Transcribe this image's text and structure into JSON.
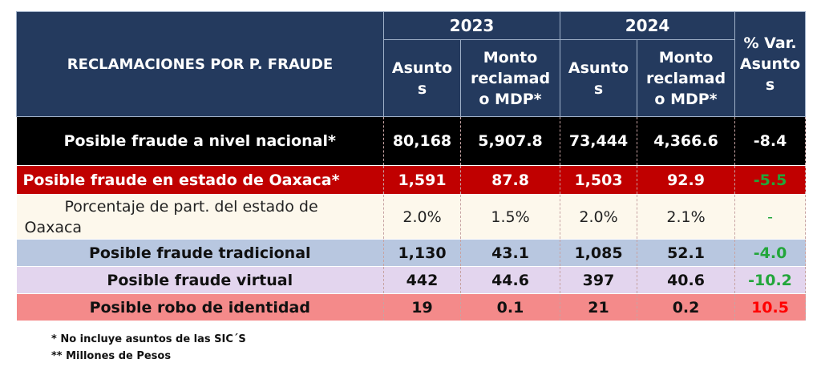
{
  "header": {
    "title": "RECLAMACIONES POR P. FRAUDE",
    "year_2023": "2023",
    "year_2024": "2024",
    "asuntos_2023_l1": "Asunto",
    "asuntos_2023_l2": "s",
    "monto_2023_l1": "Monto",
    "monto_2023_l2": "reclamad",
    "monto_2023_l3": "o MDP*",
    "asuntos_2024_l1": "Asunto",
    "asuntos_2024_l2": "s",
    "monto_2024_l1": "Monto",
    "monto_2024_l2": "reclamad",
    "monto_2024_l3": "o MDP*",
    "pct_l1": "% Var.",
    "pct_l2": "Asunto",
    "pct_l3": "s"
  },
  "rows": {
    "nacional": {
      "label": "Posible fraude a nivel nacional*",
      "a2023": "80,168",
      "m2023": "5,907.8",
      "a2024": "73,444",
      "m2024": "4,366.6",
      "var": "-8.4"
    },
    "oaxaca": {
      "label": "Posible fraude en estado de Oaxaca*",
      "a2023": "1,591",
      "m2023": "87.8",
      "a2024": "1,503",
      "m2024": "92.9",
      "var": "-5.5"
    },
    "porcentaje": {
      "label_l1": "Porcentaje de part.  del estado de",
      "label_l2": "Oaxaca",
      "a2023": "2.0%",
      "m2023": "1.5%",
      "a2024": "2.0%",
      "m2024": "2.1%",
      "var": "-"
    },
    "tradicional": {
      "label": "Posible fraude tradicional",
      "a2023": "1,130",
      "m2023": "43.1",
      "a2024": "1,085",
      "m2024": "52.1",
      "var": "-4.0"
    },
    "virtual": {
      "label": "Posible fraude virtual",
      "a2023": "442",
      "m2023": "44.6",
      "a2024": "397",
      "m2024": "40.6",
      "var": "-10.2"
    },
    "robo": {
      "label": "Posible robo de identidad",
      "a2023": "19",
      "m2023": "0.1",
      "a2024": "21",
      "m2024": "0.2",
      "var": "10.5"
    }
  },
  "notes": {
    "note1": "* No incluye asuntos de las SIC´S",
    "note2": "** Millones de Pesos"
  },
  "colors": {
    "header_bg": "#243a5e",
    "nacional_bg": "#000000",
    "oaxaca_bg": "#c00000",
    "porcentaje_bg": "#fdf8ec",
    "tradicional_bg": "#b8c7e0",
    "virtual_bg": "#e3d5ee",
    "robo_bg": "#f48a8a",
    "var_negative": "#22a63a",
    "var_positive": "#ff0000"
  }
}
